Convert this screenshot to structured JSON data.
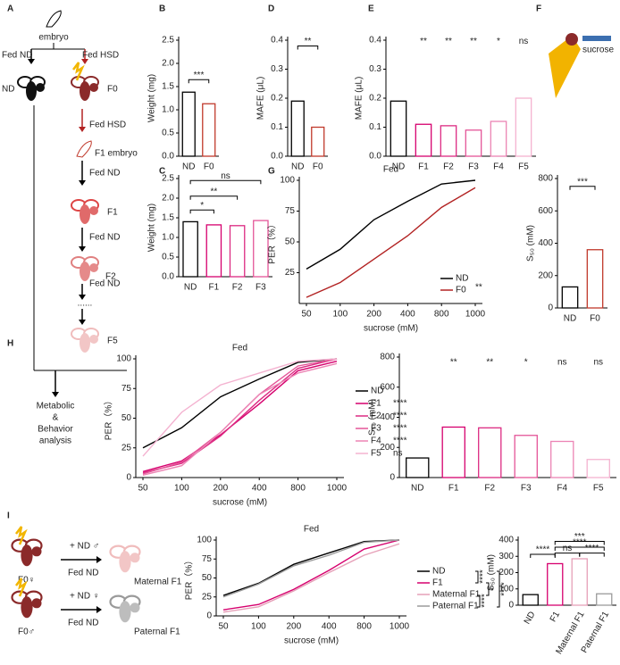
{
  "panel_labels": [
    "A",
    "B",
    "C",
    "D",
    "E",
    "F",
    "G",
    "H",
    "I"
  ],
  "diagram_a": {
    "embryo": "embryo",
    "fed_nd": "Fed ND",
    "fed_hsd": "Fed HSD",
    "nd": "ND",
    "f0": "F0",
    "fed_hsd_2": "Fed HSD",
    "f1_embryo": "F1 embryo",
    "fed_nd_2": "Fed ND",
    "f1": "F1",
    "fed_nd_3": "Fed ND",
    "f2": "F2",
    "fed_nd_4": "Fed ND",
    "dots": "......",
    "f5": "F5",
    "outcome": [
      "Metabolic",
      "&",
      "Behavior",
      "analysis"
    ]
  },
  "diagram_f": {
    "label": "sucrose"
  },
  "diagram_i": {
    "cross_1": "+ ND ♂",
    "fed_1": "Fed ND",
    "parent_1": "F0♀",
    "child_1": "Maternal F1",
    "cross_2": "+ ND ♀",
    "fed_2": "Fed ND",
    "parent_2": "F0♂",
    "child_2": "Paternal F1"
  },
  "chart_data": [
    {
      "type": "bar",
      "ylabel": "Weight (mg)",
      "categories": [
        "ND",
        "F0"
      ],
      "values": [
        1.38,
        1.13
      ],
      "colors": [
        "#000000",
        "#c0392b"
      ],
      "ylim": [
        0,
        2.5
      ],
      "yticks": [
        {
          "value": 0,
          "label": "0.0"
        },
        0.5,
        {
          "value": 1,
          "label": "1.0"
        },
        1.5,
        {
          "value": 2,
          "label": "2.0"
        },
        2.5
      ],
      "annotations": [
        "***"
      ]
    },
    {
      "type": "bar",
      "ylabel": "MAFE (μL)",
      "categories": [
        "ND",
        "F0"
      ],
      "values": [
        0.19,
        0.1
      ],
      "colors": [
        "#000000",
        "#c0392b"
      ],
      "ylim": [
        0,
        0.4
      ],
      "yticks": [
        {
          "value": 0,
          "label": "0.0"
        },
        0.1,
        0.2,
        0.3,
        0.4
      ],
      "annotations": [
        "**"
      ]
    },
    {
      "type": "bar",
      "ylabel": "MAFE (μL)",
      "categories": [
        "ND",
        "F1",
        "F2",
        "F3",
        "F4",
        "F5"
      ],
      "values": [
        0.19,
        0.11,
        0.105,
        0.09,
        0.12,
        0.2
      ],
      "colors": [
        "#000000",
        "#d6006e",
        "#dc2a82",
        "#e45598",
        "#ec84b4",
        "#f4b2d0"
      ],
      "ylim": [
        0,
        0.4
      ],
      "yticks": [
        {
          "value": 0,
          "label": "0.0"
        },
        0.1,
        0.2,
        0.3,
        0.4
      ],
      "annotations": [
        "**",
        "**",
        "**",
        "*",
        "ns"
      ]
    },
    {
      "type": "bar",
      "ylabel": "Weight (mg)",
      "categories": [
        "ND",
        "F1",
        "F2",
        "F3"
      ],
      "values": [
        1.4,
        1.32,
        1.3,
        1.43
      ],
      "colors": [
        "#000000",
        "#d6006e",
        "#dc2a82",
        "#e45598"
      ],
      "ylim": [
        0,
        2.5
      ],
      "yticks": [
        {
          "value": 0,
          "label": "0.0"
        },
        0.5,
        {
          "value": 1,
          "label": "1.0"
        },
        1.5,
        {
          "value": 2,
          "label": "2.0"
        },
        2.5
      ],
      "annotations": [
        "*",
        "**",
        "ns"
      ]
    },
    {
      "type": "line",
      "title": "Fed",
      "xlabel": "sucrose (mM)",
      "ylabel": "PER（%）",
      "categories": [
        "50",
        "100",
        "200",
        "400",
        "800",
        "1000"
      ],
      "series": [
        {
          "name": "ND",
          "color": "#000000",
          "values": [
            28,
            44,
            68,
            83,
            97,
            100
          ]
        },
        {
          "name": "F0",
          "color": "#b22222",
          "values": [
            5,
            17,
            36,
            55,
            78,
            94
          ]
        }
      ],
      "ylim": [
        0,
        100
      ],
      "yticks": [
        25,
        50,
        75,
        100
      ],
      "annotations": [
        "**"
      ]
    },
    {
      "type": "bar",
      "ylabel": "S₅₀ (mM)",
      "categories": [
        "ND",
        "F0"
      ],
      "values": [
        130,
        360
      ],
      "colors": [
        "#000000",
        "#c0392b"
      ],
      "ylim": [
        0,
        800
      ],
      "yticks": [
        0,
        200,
        400,
        600,
        800
      ],
      "annotations": [
        "***"
      ]
    },
    {
      "type": "line",
      "title": "Fed",
      "xlabel": "sucrose (mM)",
      "ylabel": "PER（%）",
      "categories": [
        "50",
        "100",
        "200",
        "400",
        "800",
        "1000"
      ],
      "series": [
        {
          "name": "ND",
          "color": "#000000",
          "values": [
            25,
            42,
            68,
            83,
            97,
            100
          ]
        },
        {
          "name": "F1",
          "color": "#d6006e",
          "values": [
            5,
            14,
            36,
            62,
            90,
            98
          ],
          "significance": "****"
        },
        {
          "name": "F2",
          "color": "#dc2a82",
          "values": [
            4,
            12,
            35,
            65,
            92,
            100
          ],
          "significance": "****"
        },
        {
          "name": "F3",
          "color": "#e45598",
          "values": [
            3,
            13,
            38,
            70,
            94,
            100
          ],
          "significance": "****"
        },
        {
          "name": "F4",
          "color": "#ec84b4",
          "values": [
            2,
            10,
            38,
            70,
            88,
            96
          ],
          "significance": "****"
        },
        {
          "name": "F5",
          "color": "#f4b2d0",
          "values": [
            18,
            55,
            78,
            88,
            98,
            100
          ],
          "significance": "ns"
        }
      ],
      "ylim": [
        0,
        100
      ],
      "yticks": [
        0,
        25,
        50,
        75,
        100
      ]
    },
    {
      "type": "bar",
      "ylabel": "S₅₀ (mM)",
      "categories": [
        "ND",
        "F1",
        "F2",
        "F3",
        "F4",
        "F5"
      ],
      "values": [
        130,
        335,
        330,
        280,
        240,
        120
      ],
      "colors": [
        "#000000",
        "#d6006e",
        "#dc2a82",
        "#e45598",
        "#ec84b4",
        "#f4b2d0"
      ],
      "ylim": [
        0,
        800
      ],
      "yticks": [
        0,
        200,
        400,
        600,
        800
      ],
      "annotations": [
        "**",
        "**",
        "*",
        "ns",
        "ns"
      ]
    },
    {
      "type": "line",
      "title": "Fed",
      "xlabel": "sucrose (mM)",
      "ylabel": "PER（%）",
      "categories": [
        "50",
        "100",
        "200",
        "400",
        "800",
        "1000"
      ],
      "series": [
        {
          "name": "ND",
          "color": "#000000",
          "values": [
            27,
            43,
            68,
            83,
            98,
            100
          ]
        },
        {
          "name": "F1",
          "color": "#d6006e",
          "values": [
            8,
            15,
            35,
            60,
            88,
            100
          ]
        },
        {
          "name": "Maternal F1",
          "color": "#e6a0b8",
          "values": [
            5,
            12,
            33,
            57,
            80,
            95
          ]
        },
        {
          "name": "Paternal F1",
          "color": "#9a9a9a",
          "values": [
            25,
            42,
            66,
            80,
            97,
            100
          ]
        }
      ],
      "ylim": [
        0,
        100
      ],
      "yticks": [
        0,
        25,
        50,
        75,
        100
      ],
      "annotations": [
        "****",
        "*",
        "****",
        "****"
      ]
    },
    {
      "type": "bar",
      "ylabel": "S₅₀ (mM)",
      "categories": [
        "ND",
        "F1",
        "Maternal F1",
        "Paternal F1"
      ],
      "values": [
        65,
        255,
        285,
        70
      ],
      "colors": [
        "#000000",
        "#d6006e",
        "#e6a0b8",
        "#9a9a9a"
      ],
      "ylim": [
        0,
        400
      ],
      "yticks": [
        0,
        100,
        200,
        300,
        400
      ],
      "annotations": [
        "****",
        "ns",
        "****",
        "****",
        "***"
      ]
    }
  ]
}
